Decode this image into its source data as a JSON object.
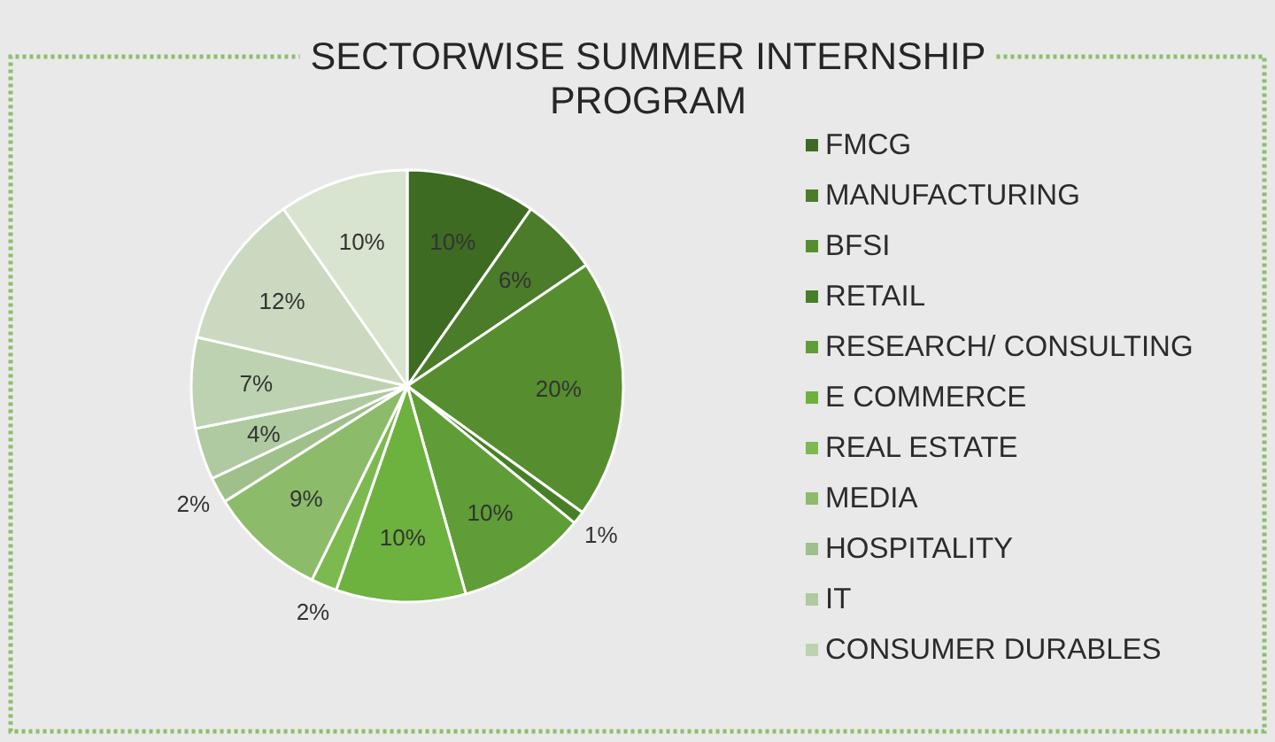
{
  "chart_data": {
    "type": "pie",
    "title": "SECTORWISE SUMMER INTERNSHIP PROGRAM",
    "categories": [
      "FMCG",
      "MANUFACTURING",
      "BFSI",
      "RETAIL",
      "RESEARCH/ CONSULTING",
      "E COMMERCE",
      "REAL ESTATE",
      "MEDIA",
      "HOSPITALITY",
      "IT",
      "CONSUMER DURABLES",
      null,
      null
    ],
    "values": [
      10,
      6,
      20,
      1,
      10,
      10,
      2,
      9,
      2,
      4,
      7,
      12,
      10
    ],
    "value_labels": [
      "10%",
      "6%",
      "20%",
      "1%",
      "10%",
      "10%",
      "2%",
      "9%",
      "2%",
      "4%",
      "7%",
      "12%",
      "10%"
    ],
    "colors": [
      "#3d6b22",
      "#4a7c2a",
      "#568e2f",
      "#477f27",
      "#5f9d36",
      "#6db13e",
      "#7cb94f",
      "#8cbb6a",
      "#9fc08a",
      "#afc9a0",
      "#bdd2b0",
      "#cad9bf",
      "#d8e3d0"
    ],
    "legend": "right"
  }
}
